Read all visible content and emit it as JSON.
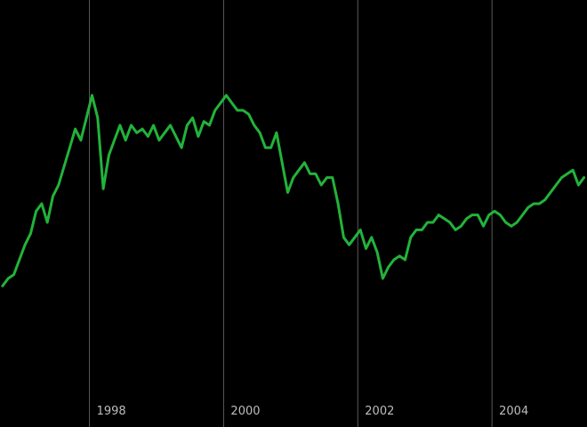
{
  "chart_data": {
    "type": "line",
    "x_axis": {
      "type": "date",
      "min": "1996-09-01",
      "max": "2005-06-01",
      "ticks": [
        "1998",
        "2000",
        "2002",
        "2004"
      ]
    },
    "y_axis": {
      "visible": false,
      "ylim": [
        0,
        100
      ]
    },
    "grid": {
      "vertical": true,
      "horizontal": false
    },
    "legend": "none",
    "colors": {
      "background": "#000000",
      "grid": "#5a5a5a",
      "tick_label": "#bdbdbd",
      "series": "#22b33a"
    },
    "series": [
      {
        "color": "#22b33a",
        "x": [
          "1996-09",
          "1996-10",
          "1996-11",
          "1996-12",
          "1997-01",
          "1997-02",
          "1997-03",
          "1997-04",
          "1997-05",
          "1997-06",
          "1997-07",
          "1997-08",
          "1997-09",
          "1997-10",
          "1997-11",
          "1997-12",
          "1998-01",
          "1998-02",
          "1998-03",
          "1998-04",
          "1998-05",
          "1998-06",
          "1998-07",
          "1998-08",
          "1998-09",
          "1998-10",
          "1998-11",
          "1998-12",
          "1999-01",
          "1999-02",
          "1999-03",
          "1999-04",
          "1999-05",
          "1999-06",
          "1999-07",
          "1999-08",
          "1999-09",
          "1999-10",
          "1999-11",
          "1999-12",
          "2000-01",
          "2000-02",
          "2000-03",
          "2000-04",
          "2000-05",
          "2000-06",
          "2000-07",
          "2000-08",
          "2000-09",
          "2000-10",
          "2000-11",
          "2000-12",
          "2001-01",
          "2001-02",
          "2001-03",
          "2001-04",
          "2001-05",
          "2001-06",
          "2001-07",
          "2001-08",
          "2001-09",
          "2001-10",
          "2001-11",
          "2001-12",
          "2002-01",
          "2002-02",
          "2002-03",
          "2002-04",
          "2002-05",
          "2002-06",
          "2002-07",
          "2002-08",
          "2002-09",
          "2002-10",
          "2002-11",
          "2002-12",
          "2003-01",
          "2003-02",
          "2003-03",
          "2003-04",
          "2003-05",
          "2003-06",
          "2003-07",
          "2003-08",
          "2003-09",
          "2003-10",
          "2003-11",
          "2003-12",
          "2004-01",
          "2004-02",
          "2004-03",
          "2004-04",
          "2004-05",
          "2004-06",
          "2004-07",
          "2004-08",
          "2004-09",
          "2004-10",
          "2004-11",
          "2004-12",
          "2005-01",
          "2005-02",
          "2005-03",
          "2005-04",
          "2005-05"
        ],
        "values": [
          33,
          35,
          36,
          40,
          44,
          47,
          53,
          55,
          50,
          57,
          60,
          65,
          70,
          75,
          72,
          78,
          84,
          78,
          59,
          68,
          72,
          76,
          72,
          76,
          74,
          75,
          73,
          76,
          72,
          74,
          76,
          73,
          70,
          76,
          78,
          73,
          77,
          76,
          80,
          82,
          84,
          82,
          80,
          80,
          79,
          76,
          74,
          70,
          70,
          74,
          66,
          58,
          62,
          64,
          66,
          63,
          63,
          60,
          62,
          62,
          55,
          46,
          44,
          46,
          48,
          43,
          46,
          42,
          35,
          38,
          40,
          41,
          40,
          46,
          48,
          48,
          50,
          50,
          52,
          51,
          50,
          48,
          49,
          51,
          52,
          52,
          49,
          52,
          53,
          52,
          50,
          49,
          50,
          52,
          54,
          55,
          55,
          56,
          58,
          60,
          62,
          63,
          64,
          60,
          62
        ]
      }
    ]
  }
}
